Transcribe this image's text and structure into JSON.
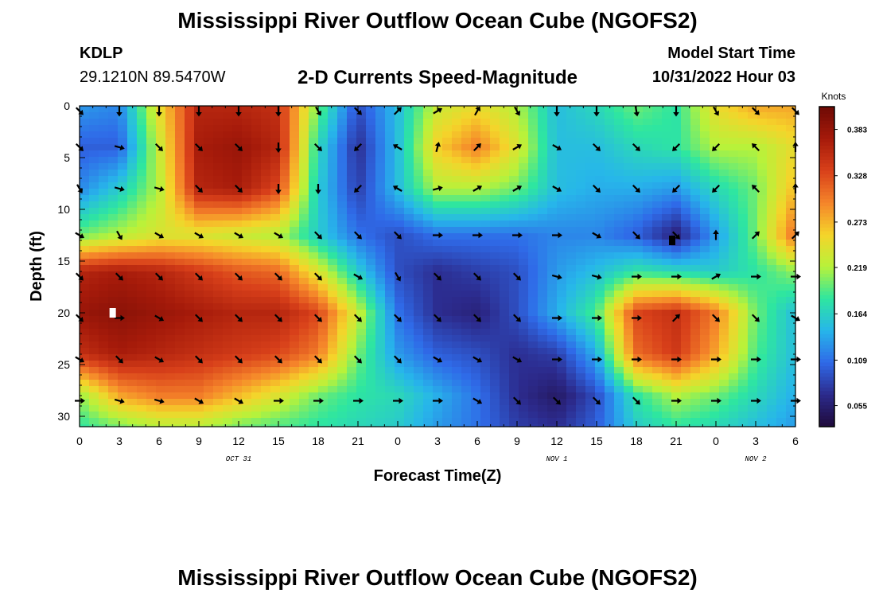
{
  "header": {
    "title": "Mississippi River Outflow Ocean Cube (NGOFS2)",
    "station_id": "KDLP",
    "station_coords": "29.1210N  89.5470W",
    "subtitle": "2-D Currents Speed-Magnitude",
    "model_start_label": "Model Start Time",
    "model_start_value": "10/31/2022 Hour 03"
  },
  "footer": {
    "title": "Mississippi River Outflow Ocean Cube (NGOFS2)"
  },
  "chart_data": {
    "type": "heatmap",
    "xlabel": "Forecast Time(Z)",
    "ylabel": "Depth (ft)",
    "x_tick_labels": [
      "0",
      "3",
      "6",
      "9",
      "12",
      "15",
      "18",
      "21",
      "0",
      "3",
      "6",
      "9",
      "12",
      "15",
      "18",
      "21",
      "0",
      "3",
      "6"
    ],
    "date_labels": [
      {
        "label": "OCT 31",
        "at_tick": 4
      },
      {
        "label": "NOV 1",
        "at_tick": 12
      },
      {
        "label": "NOV 2",
        "at_tick": 17
      }
    ],
    "y_ticks": [
      0,
      5,
      10,
      15,
      20,
      25,
      30
    ],
    "ylim": [
      0,
      31
    ],
    "y_inverted": true,
    "colorbar": {
      "unit": "Knots",
      "ticks": [
        "0.383",
        "0.328",
        "0.273",
        "0.219",
        "0.164",
        "0.109",
        "0.055"
      ],
      "range": [
        0.03,
        0.41
      ],
      "colors": [
        "#1f0a3a",
        "#2c2a8c",
        "#2f6ae8",
        "#27b6ea",
        "#2ee6a0",
        "#b8f23a",
        "#f5d42a",
        "#f5842a",
        "#d8401a",
        "#a51a0a",
        "#6e0a05"
      ]
    },
    "speed_field": {
      "hours": [
        0,
        3,
        6,
        9,
        12,
        15,
        18,
        21,
        24,
        27,
        30,
        33,
        36,
        39,
        42,
        45,
        48,
        51,
        54
      ],
      "depths": [
        0,
        4,
        8,
        12.5,
        16,
        20,
        24,
        28,
        31
      ],
      "values": [
        [
          0.13,
          0.12,
          0.25,
          0.36,
          0.36,
          0.35,
          0.2,
          0.09,
          0.15,
          0.23,
          0.25,
          0.22,
          0.15,
          0.17,
          0.2,
          0.18,
          0.25,
          0.28,
          0.28
        ],
        [
          0.1,
          0.1,
          0.23,
          0.37,
          0.38,
          0.36,
          0.17,
          0.07,
          0.15,
          0.26,
          0.3,
          0.24,
          0.15,
          0.15,
          0.17,
          0.18,
          0.22,
          0.22,
          0.25
        ],
        [
          0.12,
          0.16,
          0.22,
          0.36,
          0.37,
          0.33,
          0.16,
          0.08,
          0.15,
          0.22,
          0.22,
          0.2,
          0.15,
          0.14,
          0.14,
          0.13,
          0.17,
          0.2,
          0.27
        ],
        [
          0.2,
          0.22,
          0.24,
          0.24,
          0.23,
          0.22,
          0.16,
          0.11,
          0.09,
          0.11,
          0.11,
          0.11,
          0.12,
          0.12,
          0.1,
          0.06,
          0.13,
          0.2,
          0.31
        ],
        [
          0.36,
          0.37,
          0.36,
          0.34,
          0.32,
          0.31,
          0.24,
          0.16,
          0.09,
          0.07,
          0.08,
          0.09,
          0.13,
          0.15,
          0.18,
          0.17,
          0.16,
          0.18,
          0.21
        ],
        [
          0.38,
          0.39,
          0.38,
          0.37,
          0.36,
          0.36,
          0.33,
          0.23,
          0.11,
          0.07,
          0.06,
          0.09,
          0.14,
          0.19,
          0.33,
          0.35,
          0.3,
          0.2,
          0.15
        ],
        [
          0.35,
          0.37,
          0.36,
          0.35,
          0.34,
          0.33,
          0.3,
          0.2,
          0.13,
          0.1,
          0.09,
          0.07,
          0.08,
          0.14,
          0.31,
          0.34,
          0.28,
          0.19,
          0.15
        ],
        [
          0.21,
          0.28,
          0.3,
          0.3,
          0.27,
          0.24,
          0.2,
          0.18,
          0.17,
          0.14,
          0.11,
          0.07,
          0.05,
          0.09,
          0.18,
          0.22,
          0.2,
          0.17,
          0.14
        ],
        [
          0.18,
          0.2,
          0.22,
          0.22,
          0.2,
          0.19,
          0.18,
          0.17,
          0.16,
          0.13,
          0.11,
          0.08,
          0.07,
          0.1,
          0.16,
          0.18,
          0.17,
          0.15,
          0.13
        ]
      ]
    },
    "vectors": {
      "depths": [
        0.5,
        4,
        8,
        12.5,
        16.5,
        20.5,
        24.5,
        28.5
      ],
      "directions_deg": [
        [
          135,
          180,
          180,
          180,
          180,
          180,
          150,
          135,
          45,
          60,
          30,
          150,
          180,
          180,
          170,
          180,
          150,
          135,
          135
        ],
        [
          135,
          105,
          135,
          135,
          135,
          180,
          135,
          225,
          300,
          15,
          45,
          60,
          120,
          135,
          135,
          225,
          225,
          315,
          0
        ],
        [
          150,
          105,
          105,
          135,
          135,
          180,
          180,
          225,
          300,
          75,
          60,
          60,
          120,
          135,
          135,
          225,
          225,
          315,
          0
        ],
        [
          120,
          150,
          120,
          120,
          120,
          120,
          135,
          135,
          135,
          90,
          90,
          90,
          90,
          120,
          135,
          135,
          0,
          45,
          45
        ],
        [
          135,
          135,
          135,
          135,
          135,
          135,
          135,
          120,
          150,
          135,
          135,
          135,
          105,
          105,
          90,
          90,
          60,
          90,
          90
        ],
        [
          135,
          90,
          120,
          135,
          135,
          135,
          135,
          135,
          135,
          135,
          135,
          135,
          90,
          90,
          90,
          45,
          135,
          135,
          120
        ],
        [
          120,
          135,
          120,
          135,
          135,
          135,
          135,
          135,
          135,
          120,
          120,
          120,
          90,
          90,
          90,
          90,
          90,
          90,
          90
        ],
        [
          90,
          105,
          105,
          120,
          120,
          90,
          90,
          90,
          90,
          90,
          120,
          135,
          135,
          135,
          135,
          90,
          90,
          90,
          90
        ]
      ]
    },
    "markers": [
      {
        "hour": 2.5,
        "depth": 20,
        "color": "#ffffff"
      },
      {
        "hour": 44.7,
        "depth": 13,
        "color": "#000000"
      }
    ]
  }
}
